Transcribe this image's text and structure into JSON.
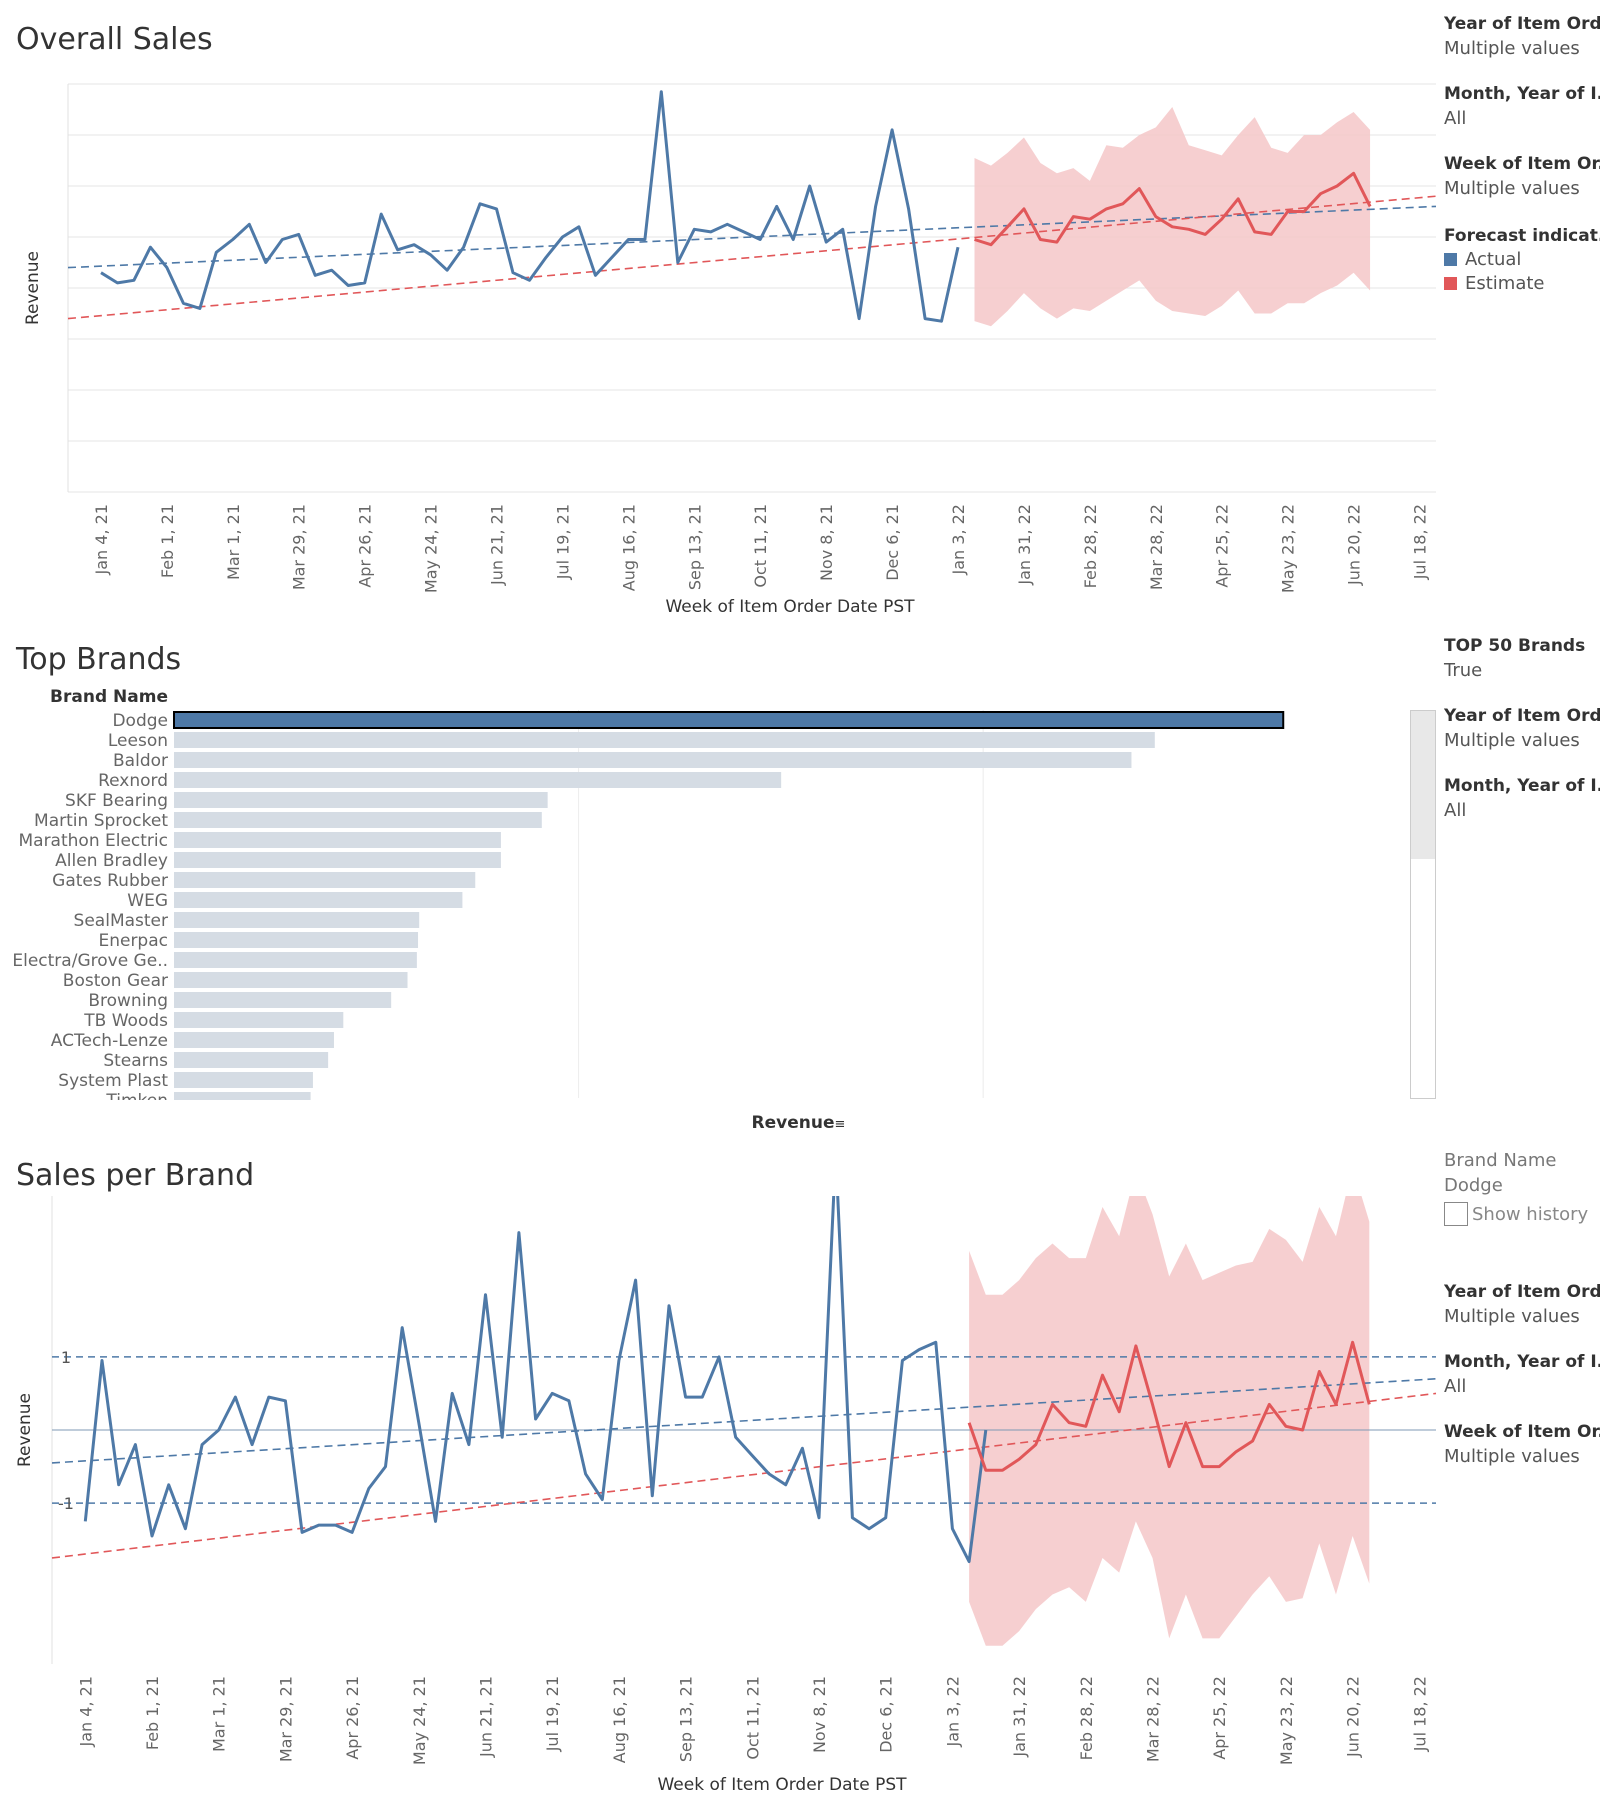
{
  "chart_data": [
    {
      "type": "line",
      "title": "Overall Sales",
      "xlabel": "Week of Item Order Date PST",
      "ylabel": "Revenue",
      "x_ticks": [
        "Jan 4, 21",
        "Feb 1, 21",
        "Mar 1, 21",
        "Mar 29, 21",
        "Apr 26, 21",
        "May 24, 21",
        "Jun 21, 21",
        "Jul 19, 21",
        "Aug 16, 21",
        "Sep 13, 21",
        "Oct 11, 21",
        "Nov 8, 21",
        "Dec 6, 21",
        "Jan 3, 22",
        "Jan 31, 22",
        "Feb 28, 22",
        "Mar 28, 22",
        "Apr 25, 22",
        "May 23, 22",
        "Jun 20, 22",
        "Jul 18, 22"
      ],
      "xlim": [
        "2020-12-21",
        "2022-07-25"
      ],
      "ylim": [
        0,
        8
      ],
      "grid": true,
      "y_tick_labels_shown": false,
      "series": [
        {
          "name": "Actual",
          "color": "#4e79a7",
          "start": "2021-01-04",
          "step_days": 7,
          "values": [
            4.3,
            4.1,
            4.15,
            4.8,
            4.4,
            3.7,
            3.6,
            4.7,
            4.95,
            5.25,
            4.5,
            4.95,
            5.05,
            4.25,
            4.35,
            4.05,
            4.1,
            5.45,
            4.75,
            4.85,
            4.65,
            4.35,
            4.8,
            5.65,
            5.55,
            4.3,
            4.15,
            4.6,
            5.0,
            5.2,
            4.25,
            4.6,
            4.95,
            4.95,
            7.85,
            4.5,
            5.15,
            5.1,
            5.25,
            5.1,
            4.95,
            5.6,
            4.95,
            6.0,
            4.9,
            5.15,
            3.4,
            5.6,
            7.1,
            5.55,
            3.4,
            3.35,
            4.8
          ]
        },
        {
          "name": "Estimate",
          "color": "#e15759",
          "start": "2022-01-10",
          "step_days": 7,
          "values": [
            4.95,
            4.85,
            5.2,
            5.55,
            4.95,
            4.9,
            5.4,
            5.35,
            5.55,
            5.65,
            5.95,
            5.4,
            5.2,
            5.15,
            5.05,
            5.35,
            5.75,
            5.1,
            5.05,
            5.5,
            5.5,
            5.85,
            6.0,
            6.25,
            5.6
          ]
        },
        {
          "name": "Estimate prediction band",
          "color": "#f4c7c8",
          "start": "2022-01-10",
          "step_days": 7,
          "upper": [
            6.55,
            6.4,
            6.65,
            6.95,
            6.45,
            6.25,
            6.35,
            6.1,
            6.8,
            6.75,
            7.0,
            7.15,
            7.55,
            6.8,
            6.7,
            6.6,
            7.0,
            7.35,
            6.75,
            6.65,
            7.0,
            7.0,
            7.25,
            7.45,
            7.1
          ],
          "lower": [
            3.35,
            3.25,
            3.55,
            3.9,
            3.6,
            3.4,
            3.6,
            3.55,
            3.75,
            3.95,
            4.15,
            3.75,
            3.55,
            3.5,
            3.45,
            3.65,
            3.95,
            3.5,
            3.5,
            3.7,
            3.7,
            3.9,
            4.05,
            4.3,
            3.95
          ]
        }
      ],
      "trend_lines": [
        {
          "name": "Actual trend",
          "color": "#4e79a7",
          "dashed": true,
          "from": [
            "2020-12-21",
            4.4
          ],
          "to": [
            "2022-07-25",
            5.6
          ]
        },
        {
          "name": "Estimate trend",
          "color": "#e15759",
          "dashed": true,
          "from": [
            "2020-12-21",
            3.4
          ],
          "to": [
            "2022-07-25",
            5.8
          ]
        }
      ]
    },
    {
      "type": "bar",
      "orientation": "horizontal",
      "title": "Top Brands",
      "row_header": "Brand Name",
      "xlabel": "Revenue",
      "categories": [
        "Dodge",
        "Leeson",
        "Baldor",
        "Rexnord",
        "SKF Bearing",
        "Martin Sprocket",
        "Marathon Electric",
        "Allen Bradley",
        "Gates Rubber",
        "WEG",
        "SealMaster",
        "Enerpac",
        "Electra/Grove Ge..",
        "Boston Gear",
        "Browning",
        "TB Woods",
        "ACTech-Lenze",
        "Stearns",
        "System Plast",
        "Timken"
      ],
      "values": [
        9.5,
        8.4,
        8.2,
        5.2,
        3.2,
        3.15,
        2.8,
        2.8,
        2.58,
        2.47,
        2.1,
        2.09,
        2.08,
        2.0,
        1.86,
        1.45,
        1.37,
        1.32,
        1.19,
        1.17
      ],
      "xlim": [
        0,
        10.5
      ],
      "selected": "Dodge",
      "highlight_color": "#4e79a7",
      "dim_color": "#d5dce4",
      "grid": true
    },
    {
      "type": "line",
      "title": "Sales per Brand",
      "xlabel": "Week of Item Order Date PST",
      "ylabel": "Revenue",
      "x_ticks": [
        "Jan 4, 21",
        "Feb 1, 21",
        "Mar 1, 21",
        "Mar 29, 21",
        "Apr 26, 21",
        "May 24, 21",
        "Jun 21, 21",
        "Jul 19, 21",
        "Aug 16, 21",
        "Sep 13, 21",
        "Oct 11, 21",
        "Nov 8, 21",
        "Dec 6, 21",
        "Jan 3, 22",
        "Jan 31, 22",
        "Feb 28, 22",
        "Mar 28, 22",
        "Apr 25, 22",
        "May 23, 22",
        "Jun 20, 22",
        "Jul 18, 22"
      ],
      "xlim": [
        "2020-12-21",
        "2022-07-25"
      ],
      "ylim": [
        -3.2,
        3.2
      ],
      "reference_lines": [
        {
          "value": 1,
          "label": "1",
          "dashed": true,
          "color": "#4e79a7"
        },
        {
          "value": -1,
          "label": "-1",
          "dashed": true,
          "color": "#4e79a7"
        },
        {
          "value": 0,
          "label": "",
          "dashed": false,
          "color": "#7f9ab5"
        }
      ],
      "series": [
        {
          "name": "Actual",
          "color": "#4e79a7",
          "start": "2021-01-04",
          "step_days": 7,
          "values": [
            -1.25,
            0.95,
            -0.75,
            -0.2,
            -1.45,
            -0.75,
            -1.35,
            -0.2,
            0.0,
            0.45,
            -0.2,
            0.45,
            0.4,
            -1.4,
            -1.3,
            -1.3,
            -1.4,
            -0.8,
            -0.5,
            1.4,
            0.1,
            -1.25,
            0.5,
            -0.2,
            1.85,
            -0.1,
            2.7,
            0.15,
            0.5,
            0.4,
            -0.6,
            -0.95,
            0.95,
            2.05,
            -0.9,
            1.7,
            0.45,
            0.45,
            1.0,
            -0.1,
            -0.35,
            -0.6,
            -0.75,
            -0.25,
            -1.2,
            3.8,
            -1.2,
            -1.35,
            -1.2,
            0.95,
            1.1,
            1.2,
            -1.35,
            -1.8,
            0.0
          ]
        },
        {
          "name": "Estimate",
          "color": "#e15759",
          "start": "2022-01-10",
          "step_days": 7,
          "values": [
            0.1,
            -0.55,
            -0.55,
            -0.4,
            -0.2,
            0.35,
            0.1,
            0.05,
            0.75,
            0.25,
            1.15,
            0.35,
            -0.5,
            0.1,
            -0.5,
            -0.5,
            -0.3,
            -0.15,
            0.35,
            0.05,
            0.0,
            0.8,
            0.35,
            1.2,
            0.35
          ]
        },
        {
          "name": "Estimate prediction band",
          "color": "#f4c7c8",
          "start": "2022-01-10",
          "step_days": 7,
          "upper": [
            2.45,
            1.85,
            1.85,
            2.05,
            2.35,
            2.55,
            2.35,
            2.35,
            3.05,
            2.65,
            3.55,
            2.95,
            2.1,
            2.55,
            2.05,
            2.15,
            2.25,
            2.3,
            2.75,
            2.6,
            2.3,
            3.05,
            2.65,
            3.6,
            2.85
          ],
          "lower": [
            -2.35,
            -2.95,
            -2.95,
            -2.75,
            -2.45,
            -2.25,
            -2.15,
            -2.35,
            -1.75,
            -1.95,
            -1.25,
            -1.75,
            -2.85,
            -2.25,
            -2.85,
            -2.85,
            -2.55,
            -2.25,
            -2.0,
            -2.35,
            -2.3,
            -1.55,
            -2.25,
            -1.45,
            -2.1
          ]
        }
      ],
      "trend_lines": [
        {
          "name": "Actual trend",
          "color": "#4e79a7",
          "dashed": true,
          "from": [
            "2020-12-21",
            -0.45
          ],
          "to": [
            "2022-07-25",
            0.7
          ]
        },
        {
          "name": "Estimate trend",
          "color": "#e15759",
          "dashed": true,
          "from": [
            "2020-12-21",
            -1.75
          ],
          "to": [
            "2022-07-25",
            0.5
          ]
        }
      ]
    }
  ],
  "panel_overall": {
    "filters": [
      {
        "title": "Year of Item Ord..",
        "value": "Multiple values"
      },
      {
        "title": "Month, Year of I..",
        "value": "All"
      },
      {
        "title": "Week of Item Or..",
        "value": "Multiple values"
      }
    ],
    "legend": {
      "title": "Forecast indicat..",
      "items": [
        {
          "label": "Actual",
          "color": "#4e79a7"
        },
        {
          "label": "Estimate",
          "color": "#e15759"
        }
      ]
    }
  },
  "panel_brands": {
    "filters": [
      {
        "title": "TOP 50 Brands",
        "value": "True"
      },
      {
        "title": "Year of Item Ord..",
        "value": "Multiple values"
      },
      {
        "title": "Month, Year of I..",
        "value": "All"
      }
    ]
  },
  "panel_sales": {
    "brand_label": "Brand Name",
    "brand_value": "Dodge",
    "show_history": "Show history",
    "filters": [
      {
        "title": "Year of Item Ord..",
        "value": "Multiple values"
      },
      {
        "title": "Month, Year of I..",
        "value": "All"
      },
      {
        "title": "Week of Item Or..",
        "value": "Multiple values"
      }
    ]
  }
}
